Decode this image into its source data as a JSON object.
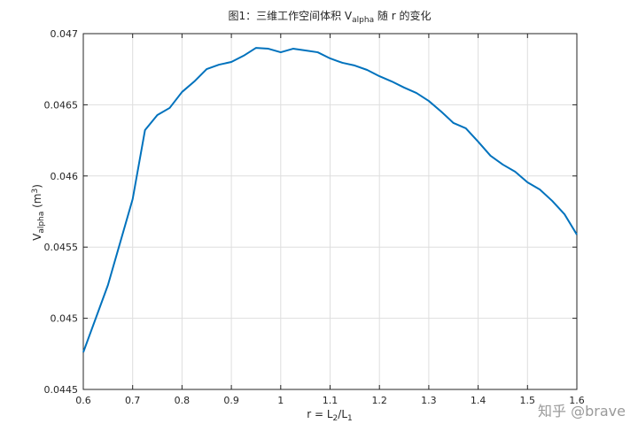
{
  "chart_data": {
    "type": "line",
    "title": [
      "图1：三维工作空间体积 V",
      "alpha",
      " 随 r 的变化"
    ],
    "x_label": [
      "r = L",
      "2",
      "/L",
      "1"
    ],
    "y_label": [
      "V",
      "alpha",
      " (m",
      "3",
      ")"
    ],
    "x": [
      0.6,
      0.65,
      0.7,
      0.725,
      0.75,
      0.775,
      0.8,
      0.825,
      0.85,
      0.875,
      0.9,
      0.925,
      0.95,
      0.975,
      1.0,
      1.025,
      1.05,
      1.075,
      1.1,
      1.125,
      1.15,
      1.175,
      1.2,
      1.225,
      1.25,
      1.275,
      1.3,
      1.325,
      1.35,
      1.375,
      1.4,
      1.425,
      1.45,
      1.475,
      1.5,
      1.525,
      1.55,
      1.575,
      1.6
    ],
    "values": [
      0.044761,
      0.045234,
      0.045837,
      0.046322,
      0.046428,
      0.046478,
      0.04659,
      0.046664,
      0.046751,
      0.046782,
      0.046801,
      0.046845,
      0.0469,
      0.046894,
      0.046869,
      0.046894,
      0.046882,
      0.046869,
      0.046826,
      0.046795,
      0.046776,
      0.046745,
      0.046701,
      0.046664,
      0.046621,
      0.046583,
      0.046527,
      0.046453,
      0.046372,
      0.046335,
      0.046241,
      0.046142,
      0.04608,
      0.04603,
      0.045955,
      0.045905,
      0.045825,
      0.045731,
      0.045588
    ],
    "color": "#0072bd",
    "xlim": [
      0.6,
      1.6
    ],
    "xticks": [
      0.6,
      0.7,
      0.8,
      0.9,
      1,
      1.1,
      1.2,
      1.3,
      1.4,
      1.5,
      1.6
    ],
    "ylim": [
      0.0445,
      0.047
    ],
    "yticks": [
      0.0445,
      0.045,
      0.0455,
      0.046,
      0.0465,
      0.047
    ],
    "grid": true
  },
  "watermark": "知乎 @brave"
}
